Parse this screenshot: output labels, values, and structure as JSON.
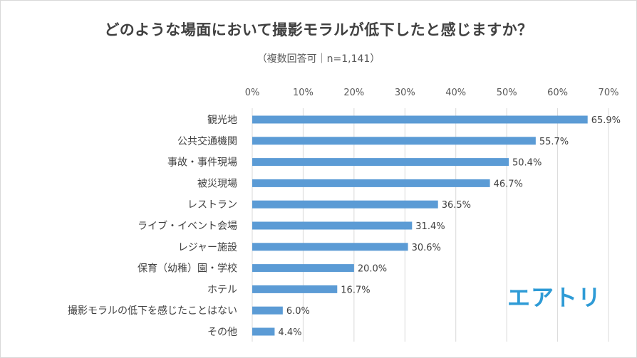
{
  "title": "どのような場面において撮影モラルが低下したと感じますか？",
  "subtitle": "（複数回答可｜n=1,141）",
  "logo_text": "エアトリ",
  "colors": {
    "bar": "#5b9bd5",
    "grid": "#d9d9d9",
    "text": "#404040",
    "logo": "#2e9bd6"
  },
  "chart_data": {
    "type": "bar",
    "orientation": "horizontal",
    "categories": [
      "観光地",
      "公共交通機関",
      "事故・事件現場",
      "被災現場",
      "レストラン",
      "ライブ・イベント会場",
      "レジャー施設",
      "保育（幼稚）園・学校",
      "ホテル",
      "撮影モラルの低下を感じたことはない",
      "その他"
    ],
    "values": [
      65.9,
      55.7,
      50.4,
      46.7,
      36.5,
      31.4,
      30.6,
      20.0,
      16.7,
      6.0,
      4.4
    ],
    "value_labels": [
      "65.9%",
      "55.7%",
      "50.4%",
      "46.7%",
      "36.5%",
      "31.4%",
      "30.6%",
      "20.0%",
      "16.7%",
      "6.0%",
      "4.4%"
    ],
    "xlim": [
      0,
      70
    ],
    "xticks": [
      0,
      10,
      20,
      30,
      40,
      50,
      60,
      70
    ],
    "xtick_labels": [
      "0%",
      "10%",
      "20%",
      "30%",
      "40%",
      "50%",
      "60%",
      "70%"
    ],
    "axis_position": "top",
    "grid": true
  }
}
